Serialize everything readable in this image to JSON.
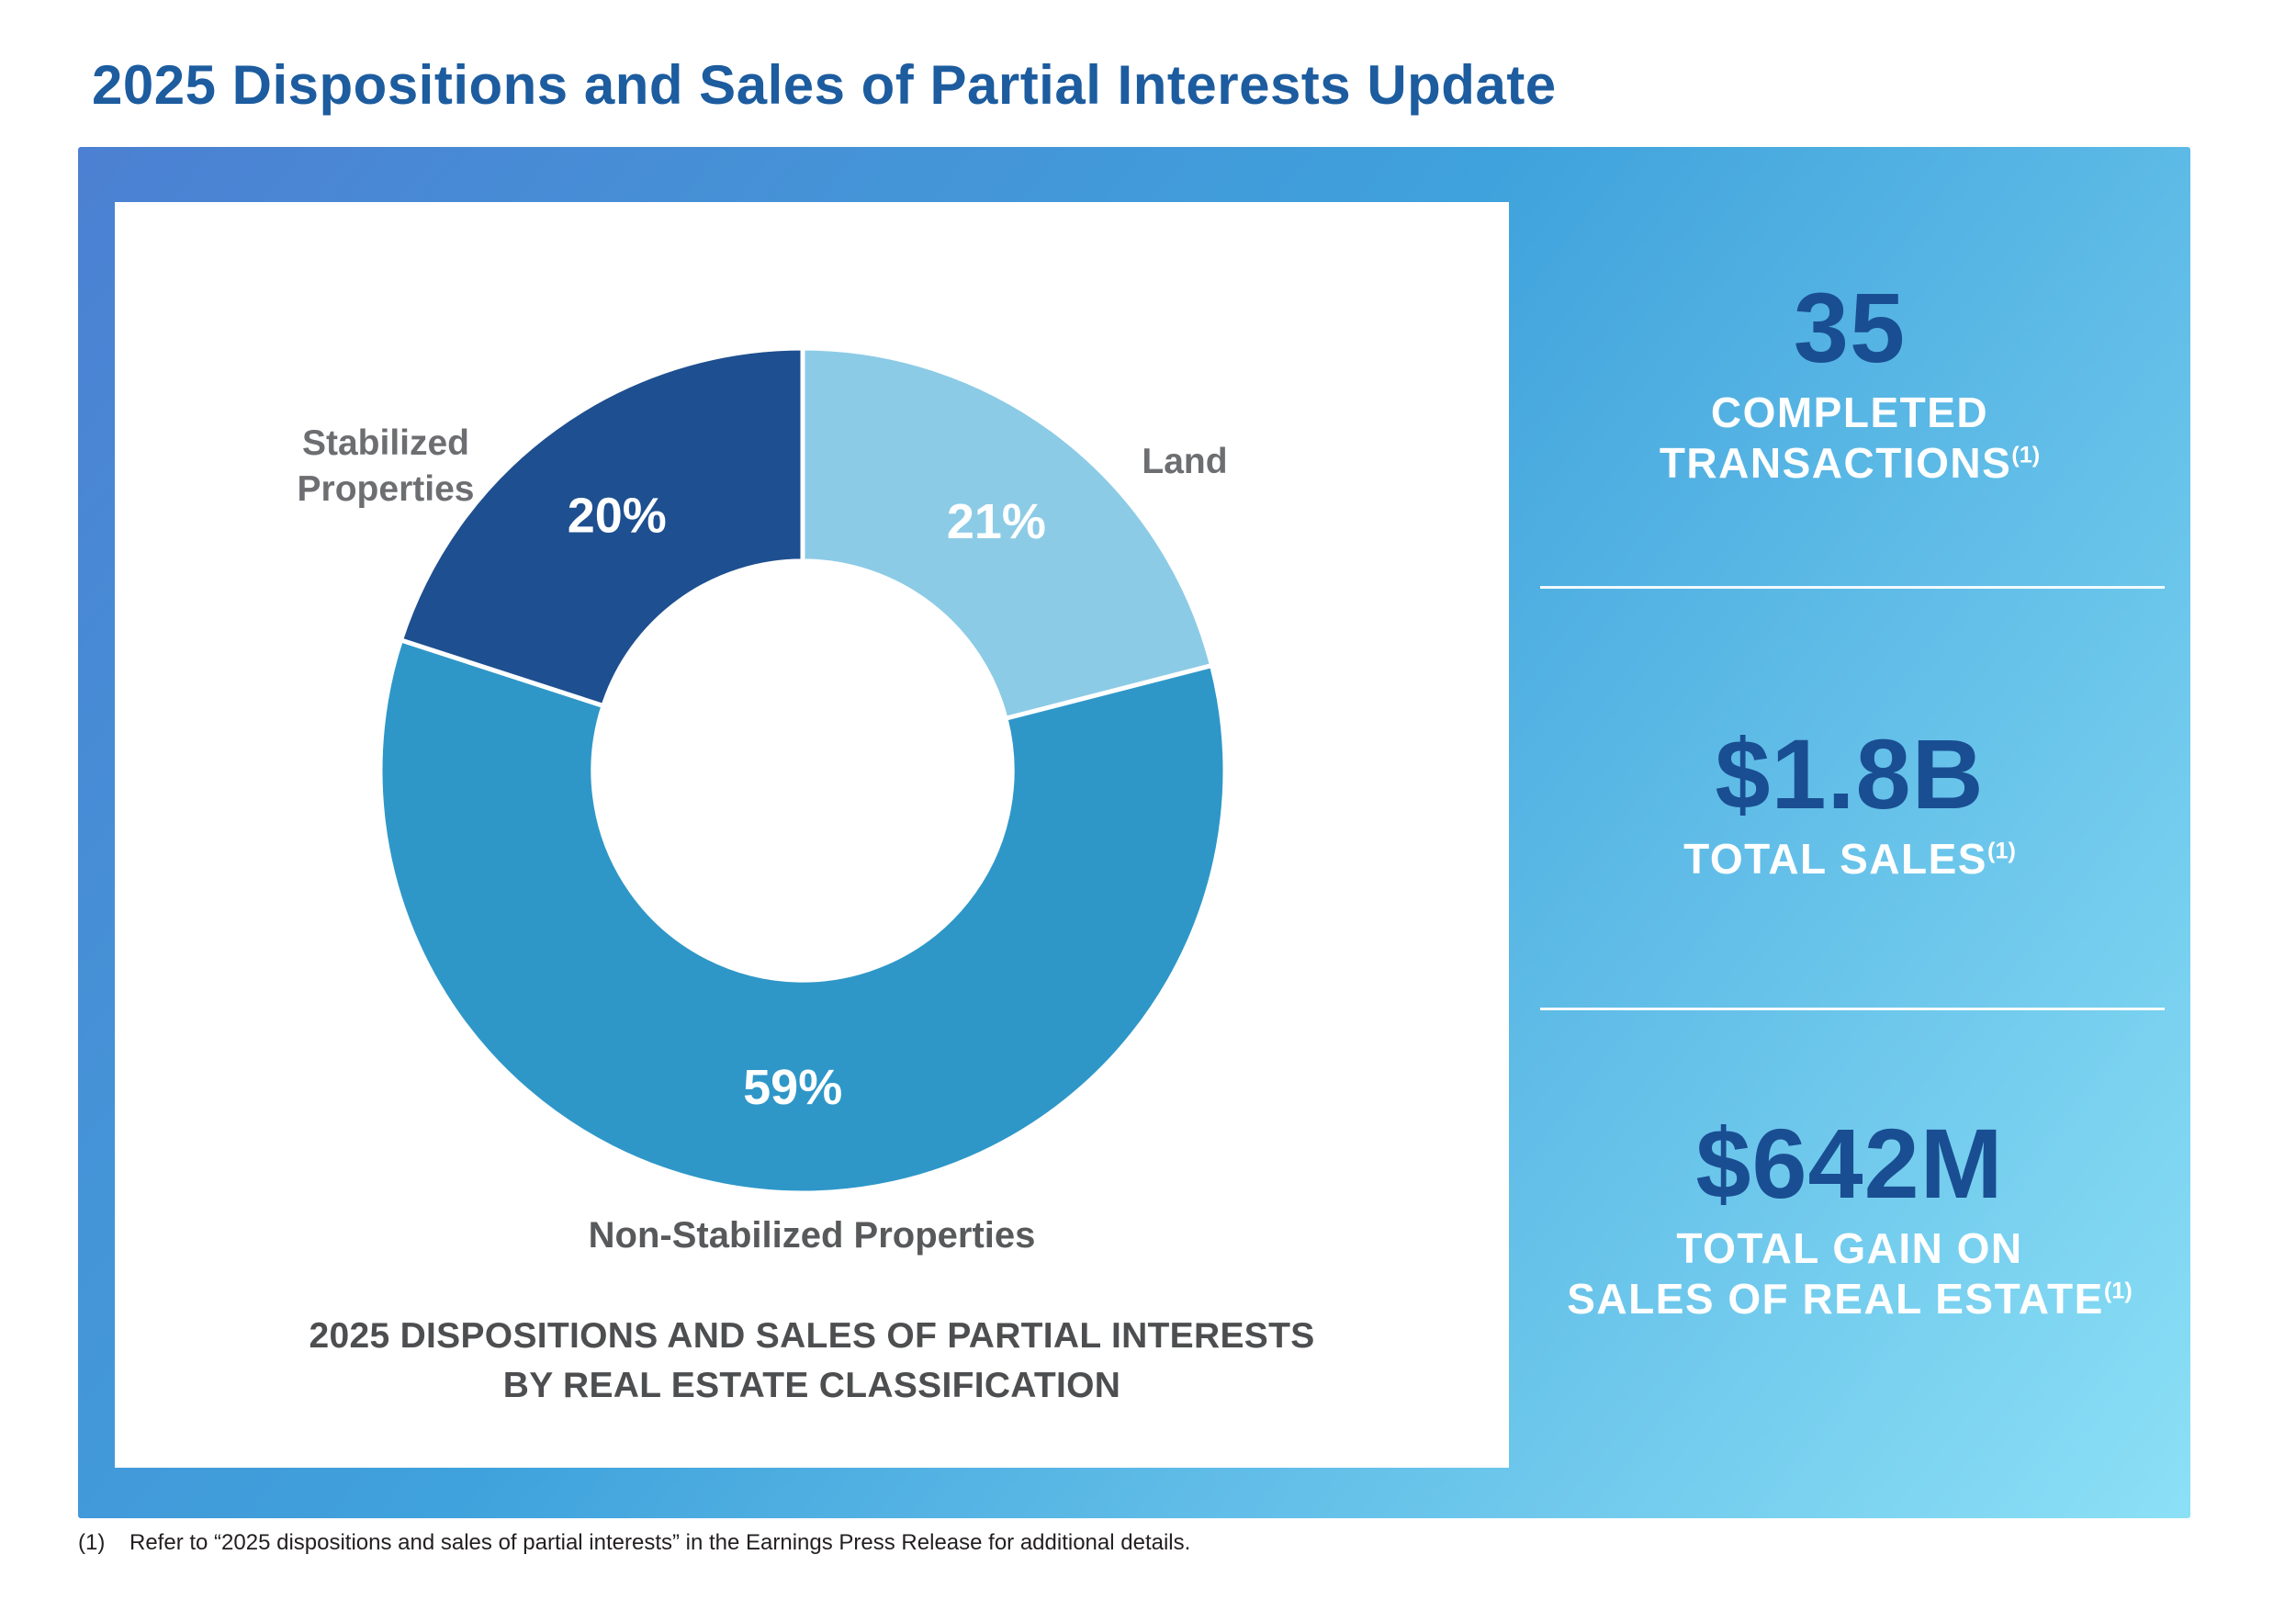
{
  "page": {
    "title": "2025 Dispositions and Sales of Partial Interests Update",
    "footnote": {
      "marker": "(1)",
      "text": "Refer to “2025 dispositions and sales of partial interests” in the Earnings Press Release for additional details."
    }
  },
  "colors": {
    "title_blue": "#1C5C9F",
    "stat_value_blue": "#1A4E92",
    "callout_grey": "#6D6E71",
    "caption_grey": "#4D4E50",
    "gradient_start": "#4C80D2",
    "gradient_mid": "#3FA2DC",
    "gradient_end": "#8CE0F6",
    "white": "#FFFFFF"
  },
  "chart_data": {
    "type": "pie",
    "donut": true,
    "inner_radius_ratio": 0.496,
    "start_angle_deg": 0,
    "direction": "clockwise",
    "title_lines": [
      "2025 DISPOSITIONS AND SALES OF PARTIAL INTERESTS",
      "BY REAL ESTATE CLASSIFICATION"
    ],
    "segments": [
      {
        "label": "Land",
        "value": 21,
        "pct_label": "21%",
        "color": "#8CCBE6"
      },
      {
        "label": "Non-Stabilized Properties",
        "value": 59,
        "pct_label": "59%",
        "color": "#2E97C8"
      },
      {
        "label": "Stabilized Properties",
        "value": 20,
        "pct_label": "20%",
        "color": "#1E4F90"
      }
    ],
    "callouts": {
      "stabilized_lines": [
        "Stabilized",
        "Properties"
      ],
      "land": "Land",
      "non_stabilized": "Non-Stabilized Properties"
    }
  },
  "stats": [
    {
      "value": "35",
      "lines": [
        "COMPLETED",
        "TRANSACTIONS"
      ],
      "sup": "(1)"
    },
    {
      "value": "$1.8B",
      "lines": [
        "TOTAL SALES"
      ],
      "sup": "(1)"
    },
    {
      "value": "$642M",
      "lines": [
        "TOTAL GAIN ON",
        "SALES OF REAL ESTATE"
      ],
      "sup": "(1)"
    }
  ]
}
